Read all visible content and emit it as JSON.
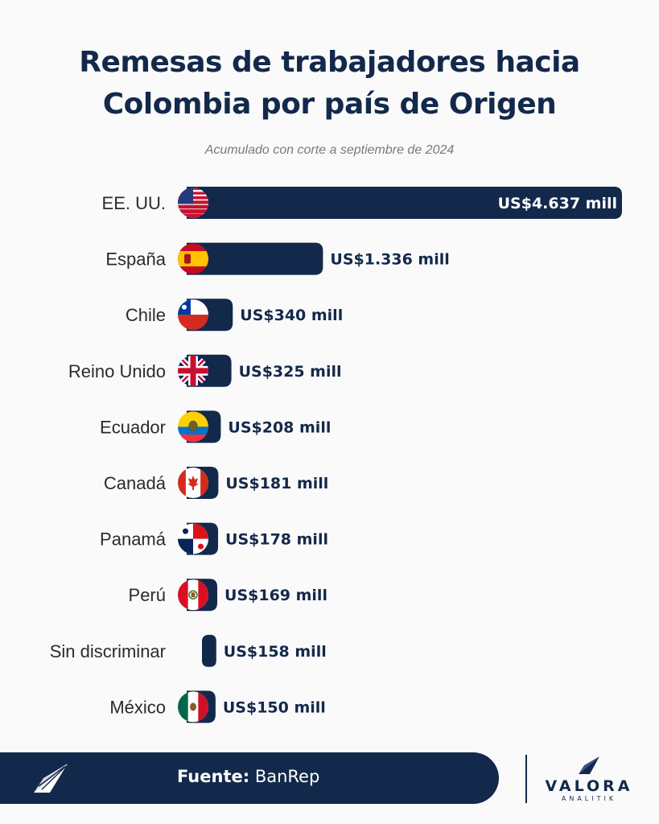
{
  "chart_data": {
    "type": "bar",
    "orientation": "horizontal",
    "title_line1": "Remesas de trabajadores hacia",
    "title_line2": "Colombia por país de Origen",
    "subtitle": "Acumulado con corte a septiembre de 2024",
    "unit": "US$ mill",
    "categories": [
      "EE. UU.",
      "España",
      "Chile",
      "Reino Unido",
      "Ecuador",
      "Canadá",
      "Panamá",
      "Perú",
      "Sin discriminar",
      "México"
    ],
    "values": [
      4637,
      1336,
      340,
      325,
      208,
      181,
      178,
      169,
      158,
      150
    ],
    "value_labels": [
      "US$4.637 mill",
      "US$1.336 mill",
      "US$340 mill",
      "US$325 mill",
      "US$208 mill",
      "US$181 mill",
      "US$178 mill",
      "US$169 mill",
      "US$158 mill",
      "US$150 mill"
    ],
    "flags": [
      "usa-flag-icon",
      "spain-flag-icon",
      "chile-flag-icon",
      "uk-flag-icon",
      "ecuador-flag-icon",
      "canada-flag-icon",
      "panama-flag-icon",
      "peru-flag-icon",
      "",
      "mexico-flag-icon"
    ],
    "bar_color": "#13294b",
    "grid": false,
    "legend": "none"
  },
  "footer": {
    "source_label": "Fuente:",
    "source_value": "BanRep"
  },
  "brand": {
    "name": "VALORA",
    "sub": "ANALITIK"
  },
  "colors": {
    "navy": "#13294b",
    "background": "#fafafa"
  }
}
